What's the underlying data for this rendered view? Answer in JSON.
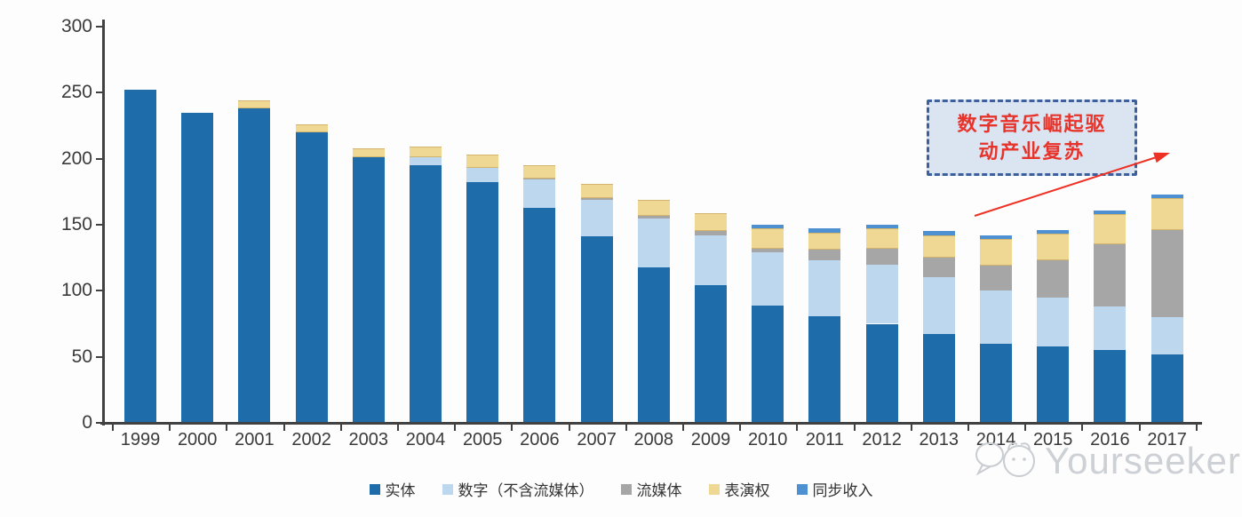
{
  "chart_data": {
    "type": "bar",
    "stacked": true,
    "title": "",
    "xlabel": "",
    "ylabel": "",
    "categories": [
      "1999",
      "2000",
      "2001",
      "2002",
      "2003",
      "2004",
      "2005",
      "2006",
      "2007",
      "2008",
      "2009",
      "2010",
      "2011",
      "2012",
      "2013",
      "2014",
      "2015",
      "2016",
      "2017"
    ],
    "series": [
      {
        "name": "实体",
        "color": "#1F6CAB",
        "values": [
          252,
          235,
          238,
          220,
          201,
          195,
          182,
          163,
          141,
          118,
          104,
          89,
          81,
          75,
          67,
          60,
          58,
          55,
          52
        ]
      },
      {
        "name": "数字（不含流媒体）",
        "color": "#BDD7EE",
        "values": [
          0,
          0,
          0,
          0,
          0,
          6,
          11,
          21,
          28,
          37,
          38,
          40,
          42,
          45,
          43,
          40,
          37,
          33,
          28
        ]
      },
      {
        "name": "流媒体",
        "color": "#A6A6A6",
        "values": [
          0,
          0,
          0,
          0,
          0,
          0,
          0,
          1,
          1,
          2,
          3,
          3,
          8,
          12,
          15,
          19,
          28,
          47,
          66
        ]
      },
      {
        "name": "表演权",
        "color": "#EFD894",
        "values": [
          0,
          0,
          6,
          6,
          7,
          8,
          10,
          10,
          11,
          12,
          14,
          15,
          13,
          15,
          17,
          20,
          20,
          23,
          24
        ]
      },
      {
        "name": "同步收入",
        "color": "#4D91D2",
        "values": [
          0,
          0,
          0,
          0,
          0,
          0,
          0,
          0,
          0,
          0,
          0,
          3,
          3,
          3,
          3,
          3,
          3,
          3,
          3
        ]
      }
    ],
    "totals": [
      252,
      235,
      244,
      226,
      208,
      209,
      203,
      195,
      181,
      169,
      159,
      150,
      147,
      150,
      145,
      142,
      146,
      161,
      173
    ],
    "ylim": [
      0,
      300
    ],
    "yticks": [
      0,
      50,
      100,
      150,
      200,
      250,
      300
    ],
    "grid": false,
    "legend_position": "bottom"
  },
  "annotation": {
    "line1": "数字音乐崛起驱",
    "line2": "动产业复苏",
    "text_color": "#E8332A",
    "box_fill": "#DBE5F2",
    "box_border": "#3C5F9E",
    "arrow_color": "#EE3124"
  },
  "watermark": {
    "text": "Yourseeker",
    "color": "#CDD1D6"
  },
  "axis": {
    "color": "#414141",
    "label_color": "#3A3A3A"
  }
}
